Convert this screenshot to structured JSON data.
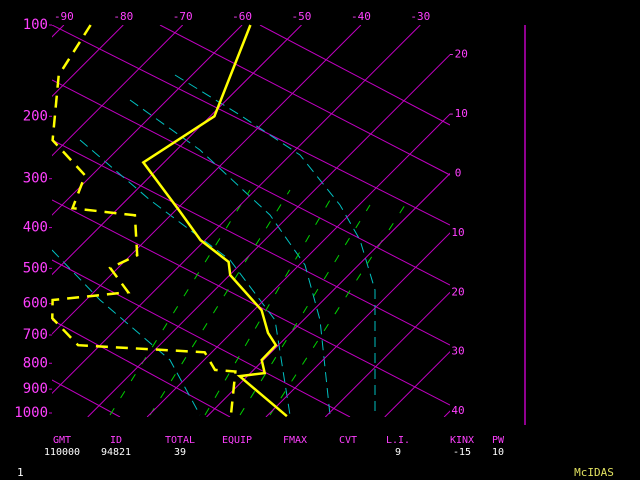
{
  "chart_data": {
    "type": "skewt",
    "ylim": [
      100,
      1000
    ],
    "yticks": [
      100,
      200,
      300,
      400,
      500,
      600,
      700,
      800,
      900,
      1000
    ],
    "xlim": [
      -92,
      -25
    ],
    "xticks": [
      -90,
      -80,
      -70,
      -60,
      -50,
      -40,
      -30
    ],
    "isotherm_labels": [
      -20,
      -10,
      0,
      10,
      20,
      30,
      40
    ],
    "series": [
      {
        "color": "#ffff00",
        "dash": false,
        "pressures": [
          100,
          200,
          271,
          366,
          429,
          483,
          518,
          620,
          693,
          735,
          788,
          837,
          849,
          1014
        ],
        "values": [
          -58.6,
          -49.3,
          -53.5,
          -38.9,
          -30.8,
          -22.4,
          -19.9,
          -8.7,
          -3.8,
          -0.4,
          -0.3,
          2.4,
          -1.3,
          13.4
        ]
      },
      {
        "color": "#ffff00",
        "dash": true,
        "pressures": [
          100,
          149,
          235,
          294,
          358,
          373,
          466,
          499,
          566,
          589,
          645,
          735,
          760,
          825,
          831,
          998
        ],
        "values": [
          -85.5,
          -82.4,
          -72.5,
          -61.1,
          -57.7,
          -46,
          -38.9,
          -41.3,
          -34.2,
          -45.6,
          -42.6,
          -33.7,
          -11.2,
          -6.5,
          -2.8,
          3.4
        ]
      }
    ]
  },
  "indices": [
    {
      "label": "GMT",
      "value": "110000"
    },
    {
      "label": "ID",
      "value": "94821"
    },
    {
      "label": "TOTAL",
      "value": 39
    },
    {
      "label": "EQUIP"
    },
    {
      "label": "FMAX"
    },
    {
      "label": "CVT"
    },
    {
      "label": "L.I.",
      "value": 9
    },
    {
      "label": "KINX",
      "value": -15
    },
    {
      "label": "PW",
      "value": 10
    }
  ],
  "footer": {
    "page": 1,
    "brand": "McIDAS"
  }
}
